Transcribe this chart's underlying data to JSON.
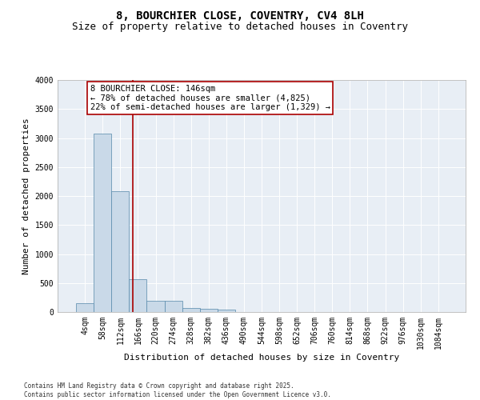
{
  "title_line1": "8, BOURCHIER CLOSE, COVENTRY, CV4 8LH",
  "title_line2": "Size of property relative to detached houses in Coventry",
  "xlabel": "Distribution of detached houses by size in Coventry",
  "ylabel": "Number of detached properties",
  "bar_labels": [
    "4sqm",
    "58sqm",
    "112sqm",
    "166sqm",
    "220sqm",
    "274sqm",
    "328sqm",
    "382sqm",
    "436sqm",
    "490sqm",
    "544sqm",
    "598sqm",
    "652sqm",
    "706sqm",
    "760sqm",
    "814sqm",
    "868sqm",
    "922sqm",
    "976sqm",
    "1030sqm",
    "1084sqm"
  ],
  "bar_values": [
    150,
    3070,
    2080,
    560,
    195,
    195,
    75,
    55,
    40,
    0,
    0,
    0,
    0,
    0,
    0,
    0,
    0,
    0,
    0,
    0,
    0
  ],
  "bar_color": "#c9d9e8",
  "bar_edge_color": "#5588aa",
  "vline_x": 2.72,
  "vline_color": "#aa0000",
  "annotation_text": "8 BOURCHIER CLOSE: 146sqm\n← 78% of detached houses are smaller (4,825)\n22% of semi-detached houses are larger (1,329) →",
  "annotation_box_color": "#aa0000",
  "ylim": [
    0,
    4000
  ],
  "yticks": [
    0,
    500,
    1000,
    1500,
    2000,
    2500,
    3000,
    3500,
    4000
  ],
  "footnote": "Contains HM Land Registry data © Crown copyright and database right 2025.\nContains public sector information licensed under the Open Government Licence v3.0.",
  "background_color": "#ffffff",
  "plot_bg_color": "#e8eef5",
  "title_fontsize": 10,
  "subtitle_fontsize": 9,
  "axis_label_fontsize": 8,
  "tick_fontsize": 7,
  "annotation_fontsize": 7.5,
  "footnote_fontsize": 5.5
}
